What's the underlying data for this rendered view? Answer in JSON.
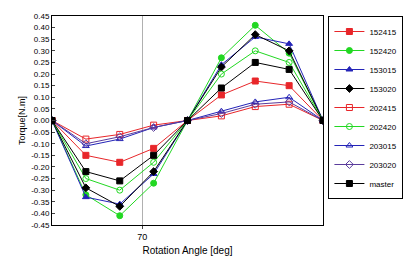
{
  "chart_data": {
    "type": "line",
    "x_label": "Rotation Angle [deg]",
    "y_label": "Torque[N.m]",
    "x": [
      62,
      65,
      68,
      71,
      74,
      77,
      80,
      83,
      86
    ],
    "xlim": [
      62,
      86
    ],
    "xticks": [
      70
    ],
    "ylim": [
      -0.45,
      0.45
    ],
    "yticks": [
      {
        "value": -0.45,
        "label": "-0.45"
      },
      {
        "value": -0.4,
        "label": "-0.40"
      },
      {
        "value": -0.35,
        "label": "-0.35"
      },
      {
        "value": -0.3,
        "label": "-0.30"
      },
      {
        "value": -0.25,
        "label": "-0.25"
      },
      {
        "value": -0.2,
        "label": "-0.20"
      },
      {
        "value": -0.15,
        "label": "-0.15"
      },
      {
        "value": -0.1,
        "label": "-0.10"
      },
      -0.05,
      {
        "value": 0,
        "label": "0.00"
      },
      0.05,
      {
        "value": 0.1,
        "label": "0.10"
      },
      0.15,
      {
        "value": 0.2,
        "label": "0.20"
      },
      0.25,
      {
        "value": 0.3,
        "label": "0.30"
      },
      0.35,
      {
        "value": 0.4,
        "label": "0.40"
      },
      0.45
    ],
    "grid": "x",
    "legend": "right",
    "series": [
      {
        "name": "152415",
        "color": "#e8262a",
        "marker": "square",
        "values": [
          0,
          -0.15,
          -0.18,
          -0.12,
          0,
          0.11,
          0.17,
          0.15,
          0
        ]
      },
      {
        "name": "152420",
        "color": "#22d822",
        "marker": "circle",
        "values": [
          0,
          -0.32,
          -0.41,
          -0.27,
          0,
          0.27,
          0.41,
          0.29,
          0
        ]
      },
      {
        "name": "153015",
        "color": "#2424b8",
        "marker": "triangle-up",
        "values": [
          0,
          -0.33,
          -0.36,
          -0.23,
          0,
          0.24,
          0.36,
          0.33,
          0
        ]
      },
      {
        "name": "153020",
        "color": "#000000",
        "marker": "diamond",
        "values": [
          0,
          -0.29,
          -0.37,
          -0.22,
          0,
          0.23,
          0.37,
          0.3,
          0
        ]
      },
      {
        "name": "202415",
        "color": "#e8262a",
        "marker": "square-open",
        "values": [
          0,
          -0.08,
          -0.06,
          -0.02,
          0,
          0.02,
          0.06,
          0.07,
          0
        ]
      },
      {
        "name": "202420",
        "color": "#22d822",
        "marker": "circle-open",
        "values": [
          0,
          -0.25,
          -0.3,
          -0.18,
          0,
          0.2,
          0.3,
          0.25,
          0
        ]
      },
      {
        "name": "203015",
        "color": "#2424b8",
        "marker": "triangle-up-open",
        "values": [
          0,
          -0.11,
          -0.08,
          -0.03,
          0,
          0.04,
          0.08,
          0.1,
          0
        ]
      },
      {
        "name": "203020",
        "color": "#5a3c9c",
        "marker": "diamond-open",
        "values": [
          0,
          -0.1,
          -0.07,
          -0.03,
          0,
          0.03,
          0.07,
          0.08,
          0
        ]
      },
      {
        "name": "master",
        "color": "#000000",
        "marker": "square",
        "values": [
          0,
          -0.22,
          -0.26,
          -0.15,
          0,
          0.14,
          0.25,
          0.22,
          0
        ]
      }
    ]
  }
}
